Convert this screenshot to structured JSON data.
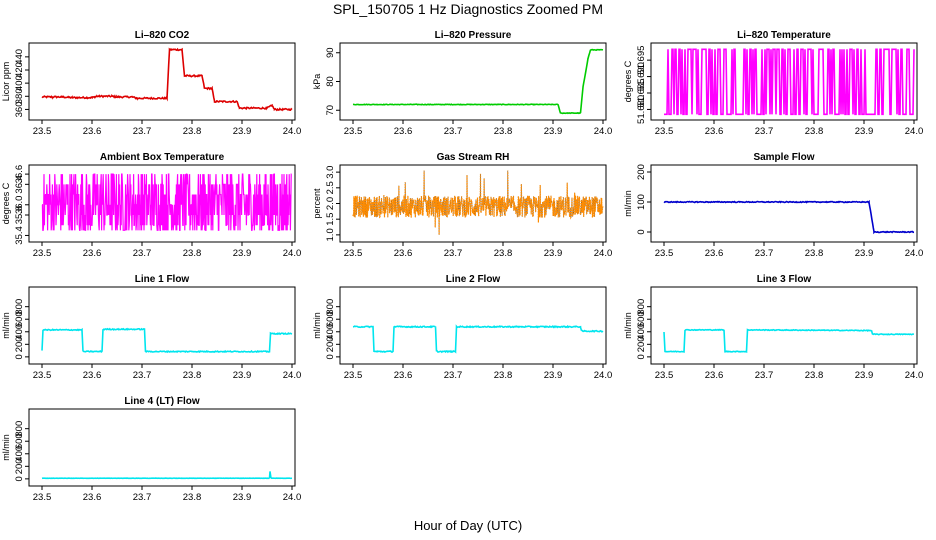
{
  "title": "SPL_150705  1 Hz Diagnostics Zoomed PM",
  "xlabel": "Hour of Day (UTC)",
  "chart_data": [
    {
      "type": "line",
      "title": "Li–820 CO2",
      "ylabel": "Licor ppm",
      "color": "#dd0000",
      "x_ticks": [
        "23.5",
        "23.6",
        "23.7",
        "23.8",
        "23.9",
        "24.0"
      ],
      "xlim": [
        23.5,
        24.0
      ],
      "y_ticks": [
        360,
        380,
        400,
        420,
        440
      ],
      "ylim": [
        350,
        455
      ],
      "noise": 1.2,
      "points": [
        [
          23.5,
          379
        ],
        [
          23.52,
          379
        ],
        [
          23.54,
          379
        ],
        [
          23.56,
          378
        ],
        [
          23.6,
          378
        ],
        [
          23.61,
          380
        ],
        [
          23.64,
          380
        ],
        [
          23.65,
          379
        ],
        [
          23.68,
          379
        ],
        [
          23.69,
          377
        ],
        [
          23.75,
          377
        ],
        [
          23.755,
          451
        ],
        [
          23.78,
          451
        ],
        [
          23.785,
          411
        ],
        [
          23.82,
          411
        ],
        [
          23.825,
          392
        ],
        [
          23.84,
          392
        ],
        [
          23.845,
          372
        ],
        [
          23.89,
          372
        ],
        [
          23.895,
          362
        ],
        [
          23.95,
          362
        ],
        [
          23.96,
          366
        ],
        [
          23.965,
          360
        ],
        [
          24.0,
          360
        ]
      ]
    },
    {
      "type": "line",
      "title": "Li–820 Pressure",
      "ylabel": "kPa",
      "color": "#00cc00",
      "x_ticks": [
        "23.5",
        "23.6",
        "23.7",
        "23.8",
        "23.9",
        "24.0"
      ],
      "xlim": [
        23.5,
        24.0
      ],
      "y_ticks": [
        70,
        80,
        90
      ],
      "ylim": [
        68,
        92
      ],
      "noise": 0.1,
      "points": [
        [
          23.5,
          72
        ],
        [
          23.91,
          72
        ],
        [
          23.915,
          69
        ],
        [
          23.955,
          69
        ],
        [
          23.96,
          78
        ],
        [
          23.97,
          88
        ],
        [
          23.975,
          91
        ],
        [
          24.0,
          91
        ]
      ]
    },
    {
      "type": "line",
      "title": "Li–820 Temperature",
      "ylabel": "degrees C",
      "color": "#ff00ff",
      "x_ticks": [
        "23.5",
        "23.6",
        "23.7",
        "23.8",
        "23.9",
        "24.0"
      ],
      "xlim": [
        23.5,
        24.0
      ],
      "y_ticks": [
        51.68,
        51.685,
        51.69,
        51.695
      ],
      "y_tick_labels": [
        "51.680",
        "51.685",
        "51.690",
        "51.695"
      ],
      "ylim": [
        51.678,
        51.699
      ],
      "noise": 0,
      "levels": [
        51.6785,
        51.6983
      ],
      "pattern": "binary"
    },
    {
      "type": "line",
      "title": "Ambient Box Temperature",
      "ylabel": "degrees C",
      "color": "#ff00ff",
      "x_ticks": [
        "23.5",
        "23.6",
        "23.7",
        "23.8",
        "23.9",
        "24.0"
      ],
      "xlim": [
        23.5,
        24.0
      ],
      "y_ticks": [
        35.4,
        35.8,
        36.0,
        36.4,
        36.6
      ],
      "y_tick_labels": [
        "35.4",
        "35.8",
        "36.0",
        "36.4",
        "36.6"
      ],
      "ylim": [
        35.35,
        36.7
      ],
      "noise": 0,
      "levels": [
        35.5,
        36.6
      ],
      "pattern": "multi"
    },
    {
      "type": "scatter",
      "title": "Gas Stream RH",
      "ylabel": "percent",
      "color": "#ff8c00",
      "x_ticks": [
        "23.5",
        "23.6",
        "23.7",
        "23.8",
        "23.9",
        "24.0"
      ],
      "xlim": [
        23.5,
        24.0
      ],
      "y_ticks": [
        1.0,
        1.5,
        2.0,
        2.5,
        3.0
      ],
      "y_tick_labels": [
        "1.0",
        "1.5",
        "2.0",
        "2.5",
        "3.0"
      ],
      "ylim": [
        0.9,
        3.1
      ],
      "center": 1.9,
      "spread": 0.35,
      "pattern": "scatter"
    },
    {
      "type": "line",
      "title": "Sample Flow",
      "ylabel": "ml/min",
      "color": "#0000cc",
      "x_ticks": [
        "23.5",
        "23.6",
        "23.7",
        "23.8",
        "23.9",
        "24.0"
      ],
      "xlim": [
        23.5,
        24.0
      ],
      "y_ticks": [
        0,
        100,
        200
      ],
      "ylim": [
        -20,
        210
      ],
      "noise": 1.5,
      "points": [
        [
          23.5,
          100
        ],
        [
          23.91,
          100
        ],
        [
          23.92,
          0
        ],
        [
          24.0,
          0
        ]
      ]
    },
    {
      "type": "line",
      "title": "Line 1 Flow",
      "ylabel": "ml/min",
      "color": "#00e5ee",
      "x_ticks": [
        "23.5",
        "23.6",
        "23.7",
        "23.8",
        "23.9",
        "24.0"
      ],
      "xlim": [
        23.5,
        24.0
      ],
      "y_ticks": [
        0,
        200,
        400,
        600,
        800
      ],
      "ylim": [
        -50,
        1050
      ],
      "noise": 8,
      "points": [
        [
          23.5,
          100
        ],
        [
          23.502,
          430
        ],
        [
          23.58,
          430
        ],
        [
          23.582,
          85
        ],
        [
          23.62,
          85
        ],
        [
          23.622,
          440
        ],
        [
          23.705,
          440
        ],
        [
          23.707,
          85
        ],
        [
          23.955,
          85
        ],
        [
          23.957,
          370
        ],
        [
          24.0,
          370
        ]
      ]
    },
    {
      "type": "line",
      "title": "Line 2 Flow",
      "ylabel": "ml/min",
      "color": "#00e5ee",
      "x_ticks": [
        "23.5",
        "23.6",
        "23.7",
        "23.8",
        "23.9",
        "24.0"
      ],
      "xlim": [
        23.5,
        24.0
      ],
      "y_ticks": [
        0,
        200,
        400,
        600,
        800
      ],
      "ylim": [
        -50,
        1050
      ],
      "noise": 9,
      "points": [
        [
          23.5,
          480
        ],
        [
          23.54,
          480
        ],
        [
          23.542,
          85
        ],
        [
          23.58,
          85
        ],
        [
          23.582,
          480
        ],
        [
          23.665,
          480
        ],
        [
          23.667,
          85
        ],
        [
          23.705,
          85
        ],
        [
          23.707,
          480
        ],
        [
          23.955,
          480
        ],
        [
          23.957,
          410
        ],
        [
          24.0,
          410
        ]
      ]
    },
    {
      "type": "line",
      "title": "Line 3 Flow",
      "ylabel": "ml/min",
      "color": "#00e5ee",
      "x_ticks": [
        "23.5",
        "23.6",
        "23.7",
        "23.8",
        "23.9",
        "24.0"
      ],
      "xlim": [
        23.5,
        24.0
      ],
      "y_ticks": [
        0,
        200,
        400,
        600,
        800
      ],
      "ylim": [
        -50,
        1050
      ],
      "noise": 6,
      "points": [
        [
          23.5,
          400
        ],
        [
          23.502,
          85
        ],
        [
          23.54,
          85
        ],
        [
          23.542,
          430
        ],
        [
          23.62,
          430
        ],
        [
          23.622,
          85
        ],
        [
          23.665,
          85
        ],
        [
          23.667,
          430
        ],
        [
          23.915,
          420
        ],
        [
          23.917,
          360
        ],
        [
          24.0,
          360
        ]
      ]
    },
    {
      "type": "line",
      "title": "Line 4 (LT) Flow",
      "ylabel": "ml/min",
      "color": "#00e5ee",
      "x_ticks": [
        "23.5",
        "23.6",
        "23.7",
        "23.8",
        "23.9",
        "24.0"
      ],
      "xlim": [
        23.5,
        24.0
      ],
      "y_ticks": [
        0,
        200,
        400,
        600,
        800
      ],
      "ylim": [
        -50,
        1050
      ],
      "noise": 2,
      "points": [
        [
          23.5,
          10
        ],
        [
          23.955,
          10
        ],
        [
          23.956,
          120
        ],
        [
          23.958,
          10
        ],
        [
          24.0,
          10
        ]
      ]
    }
  ]
}
